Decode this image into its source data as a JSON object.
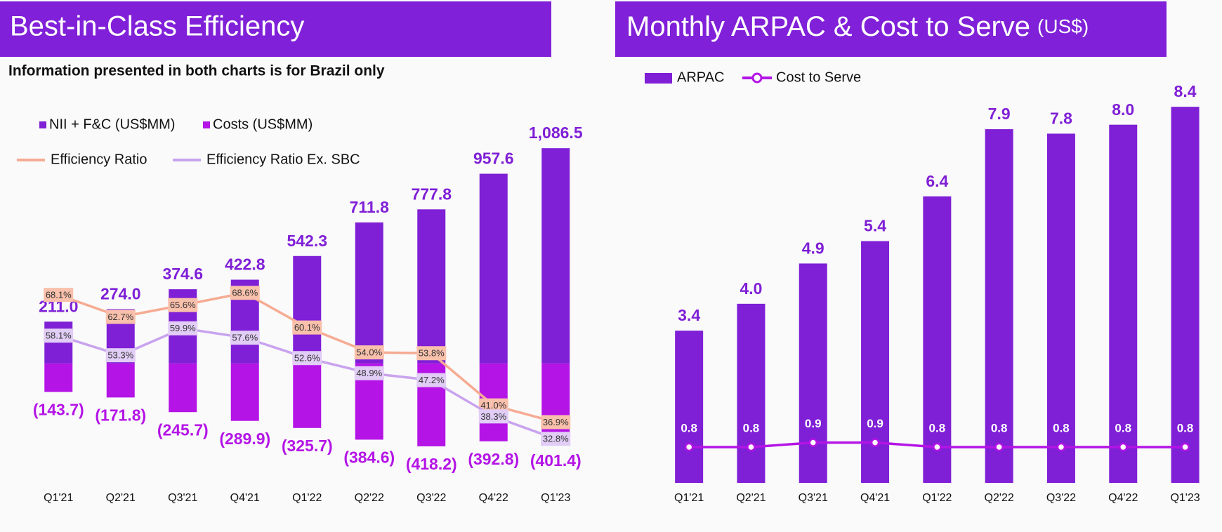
{
  "chart_data": [
    {
      "type": "bar",
      "title": "Best-in-Class Efficiency",
      "subtitle": "Information presented in both charts is for Brazil only",
      "categories": [
        "Q1'21",
        "Q2'21",
        "Q3'21",
        "Q4'21",
        "Q1'22",
        "Q2'22",
        "Q3'22",
        "Q4'22",
        "Q1'23"
      ],
      "series": [
        {
          "name": "NII + F&C (US$MM)",
          "type": "bar",
          "color": "#7f1fd6",
          "values": [
            211.0,
            274.0,
            374.6,
            422.8,
            542.3,
            711.8,
            777.8,
            957.6,
            1086.5
          ],
          "value_labels": [
            "211.0",
            "274.0",
            "374.6",
            "422.8",
            "542.3",
            "711.8",
            "777.8",
            "957.6",
            "1,086.5"
          ]
        },
        {
          "name": "Costs (US$MM)",
          "type": "bar",
          "color": "#b414e6",
          "values": [
            -143.7,
            -171.8,
            -245.7,
            -289.9,
            -325.7,
            -384.6,
            -418.2,
            -392.8,
            -401.4
          ],
          "value_labels": [
            "(143.7)",
            "(171.8)",
            "(245.7)",
            "(289.9)",
            "(325.7)",
            "(384.6)",
            "(418.2)",
            "(392.8)",
            "(401.4)"
          ]
        },
        {
          "name": "Efficiency Ratio",
          "type": "line",
          "axis": "y2",
          "color": "#f6ab93",
          "values": [
            68.1,
            62.7,
            65.6,
            68.6,
            60.1,
            54.0,
            53.8,
            41.0,
            36.9
          ],
          "value_labels": [
            "68.1%",
            "62.7%",
            "65.6%",
            "68.6%",
            "60.1%",
            "54.0%",
            "53.8%",
            "41.0%",
            "36.9%"
          ]
        },
        {
          "name": "Efficiency Ratio Ex. SBC",
          "type": "line",
          "axis": "y2",
          "color": "#c9a3ee",
          "values": [
            58.1,
            53.3,
            59.9,
            57.6,
            52.6,
            48.9,
            47.2,
            38.3,
            32.8
          ],
          "value_labels": [
            "58.1%",
            "53.3%",
            "59.9%",
            "57.6%",
            "52.6%",
            "48.9%",
            "47.2%",
            "38.3%",
            "32.8%"
          ]
        }
      ],
      "ylim": [
        -500,
        1250
      ],
      "y2lim": [
        27,
        112
      ],
      "grid": false,
      "legend": "top-left"
    },
    {
      "type": "bar",
      "title": "Monthly ARPAC & Cost to Serve",
      "title_unit": "(US$)",
      "categories": [
        "Q1'21",
        "Q2'21",
        "Q3'21",
        "Q4'21",
        "Q1'22",
        "Q2'22",
        "Q3'22",
        "Q4'22",
        "Q1'23"
      ],
      "series": [
        {
          "name": "ARPAC",
          "type": "bar",
          "color": "#7f1fd6",
          "values": [
            3.4,
            4.0,
            4.9,
            5.4,
            6.4,
            7.9,
            7.8,
            8.0,
            8.4
          ],
          "value_labels": [
            "3.4",
            "4.0",
            "4.9",
            "5.4",
            "6.4",
            "7.9",
            "7.8",
            "8.0",
            "8.4"
          ]
        },
        {
          "name": "Cost to Serve",
          "type": "line",
          "color": "#b414e6",
          "values": [
            0.8,
            0.8,
            0.9,
            0.9,
            0.8,
            0.8,
            0.8,
            0.8,
            0.8
          ]
        }
      ],
      "ylim": [
        0,
        9.5
      ],
      "grid": false,
      "legend": "top-left"
    }
  ]
}
